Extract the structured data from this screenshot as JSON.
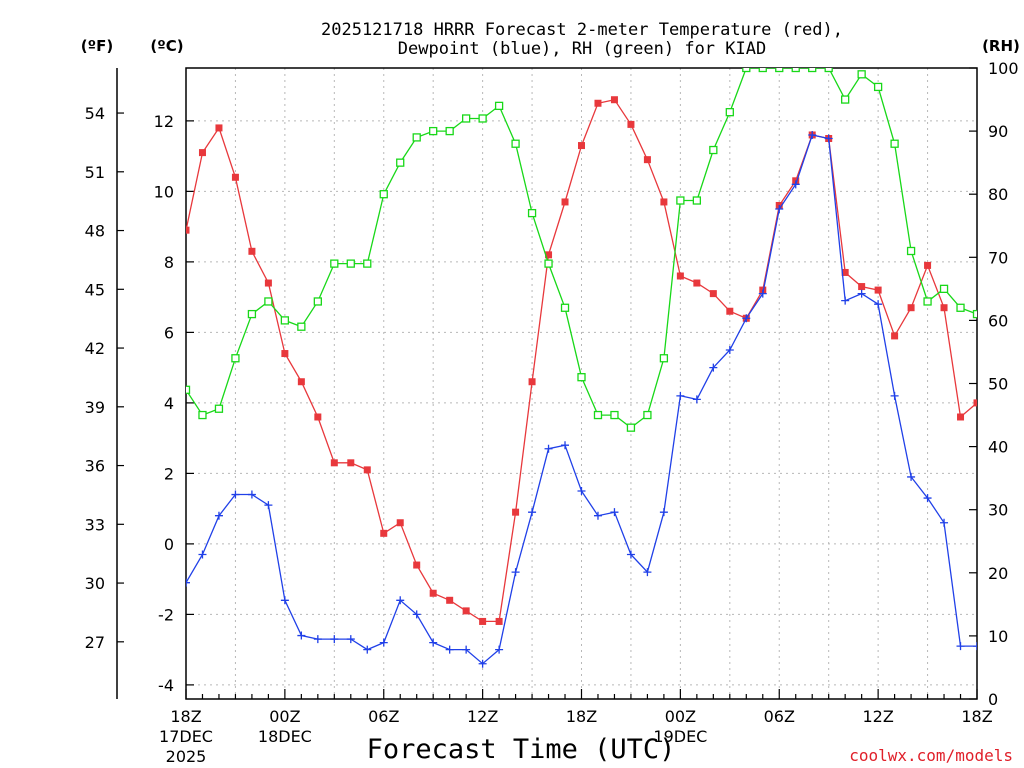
{
  "chart_data": {
    "type": "line",
    "title_line1": "2025121718 HRRR Forecast 2-meter Temperature (red),",
    "title_line2": "Dewpoint (blue), RH (green) for KIAD",
    "xlabel": "Forecast Time (UTC)",
    "credit": "coolwx.com/models",
    "units": {
      "fahrenheit": "(ºF)",
      "celsius": "(ºC)",
      "rh": "(RH)"
    },
    "ylim_celsius": [
      -4.4,
      13.5
    ],
    "ylim_rh": [
      0,
      100
    ],
    "yticks_celsius": [
      "-4",
      "-2",
      "0",
      "2",
      "4",
      "6",
      "8",
      "10",
      "12"
    ],
    "yticks_celsius_values": [
      -4,
      -2,
      0,
      2,
      4,
      6,
      8,
      10,
      12
    ],
    "yticks_fahrenheit": [
      "27",
      "30",
      "33",
      "36",
      "39",
      "42",
      "45",
      "48",
      "51",
      "54"
    ],
    "yticks_fahrenheit_values": [
      27,
      30,
      33,
      36,
      39,
      42,
      45,
      48,
      51,
      54
    ],
    "yticks_rh": [
      "0",
      "10",
      "20",
      "30",
      "40",
      "50",
      "60",
      "70",
      "80",
      "90",
      "100"
    ],
    "yticks_rh_values": [
      0,
      10,
      20,
      30,
      40,
      50,
      60,
      70,
      80,
      90,
      100
    ],
    "xticks": [
      {
        "hour": 0,
        "lines": [
          "18Z",
          "17DEC",
          "2025"
        ]
      },
      {
        "hour": 6,
        "lines": [
          "00Z",
          "18DEC"
        ]
      },
      {
        "hour": 12,
        "lines": [
          "06Z"
        ]
      },
      {
        "hour": 18,
        "lines": [
          "12Z"
        ]
      },
      {
        "hour": 24,
        "lines": [
          "18Z"
        ]
      },
      {
        "hour": 30,
        "lines": [
          "00Z",
          "19DEC"
        ]
      },
      {
        "hour": 36,
        "lines": [
          "06Z"
        ]
      },
      {
        "hour": 42,
        "lines": [
          "12Z"
        ]
      },
      {
        "hour": 48,
        "lines": [
          "18Z"
        ]
      }
    ],
    "xlim_hours": [
      0,
      48
    ],
    "series": [
      {
        "name": "Temperature",
        "units": "C",
        "color": "#e8383c",
        "marker": "filled-square",
        "values": [
          8.9,
          11.1,
          11.8,
          10.4,
          8.3,
          7.4,
          5.4,
          4.6,
          3.6,
          2.3,
          2.3,
          2.1,
          0.3,
          0.6,
          -0.6,
          -1.4,
          -1.6,
          -1.9,
          -2.2,
          -2.2,
          0.9,
          4.6,
          8.2,
          9.7,
          11.3,
          12.5,
          12.6,
          11.9,
          10.9,
          9.7,
          7.6,
          7.4,
          7.1,
          6.6,
          6.4,
          7.2,
          9.6,
          10.3,
          11.6,
          11.5,
          7.7,
          7.3,
          7.2,
          5.9,
          6.7,
          7.9,
          6.7,
          3.6,
          4.0
        ]
      },
      {
        "name": "Dewpoint",
        "units": "C",
        "color": "#2040e8",
        "marker": "plus",
        "values": [
          -1.1,
          -0.3,
          0.8,
          1.4,
          1.4,
          1.1,
          -1.6,
          -2.6,
          -2.7,
          -2.7,
          -2.7,
          -3.0,
          -2.8,
          -1.6,
          -2.0,
          -2.8,
          -3.0,
          -3.0,
          -3.4,
          -3.0,
          -0.8,
          0.9,
          2.7,
          2.8,
          1.5,
          0.8,
          0.9,
          -0.3,
          -0.8,
          0.9,
          4.2,
          4.1,
          5.0,
          5.5,
          6.4,
          7.1,
          9.5,
          10.2,
          11.6,
          11.5,
          6.9,
          7.1,
          6.8,
          4.2,
          1.9,
          1.3,
          0.6,
          -2.9,
          -2.9
        ]
      },
      {
        "name": "RH",
        "units": "%",
        "color": "#18d818",
        "marker": "open-square",
        "values": [
          49,
          45,
          46,
          54,
          61,
          63,
          60,
          59,
          63,
          69,
          69,
          69,
          80,
          85,
          89,
          90,
          90,
          92,
          92,
          94,
          88,
          77,
          69,
          62,
          51,
          45,
          45,
          43,
          45,
          54,
          79,
          79,
          87,
          93,
          100,
          100,
          100,
          100,
          100,
          100,
          95,
          99,
          97,
          88,
          71,
          63,
          65,
          62,
          61
        ]
      }
    ]
  }
}
